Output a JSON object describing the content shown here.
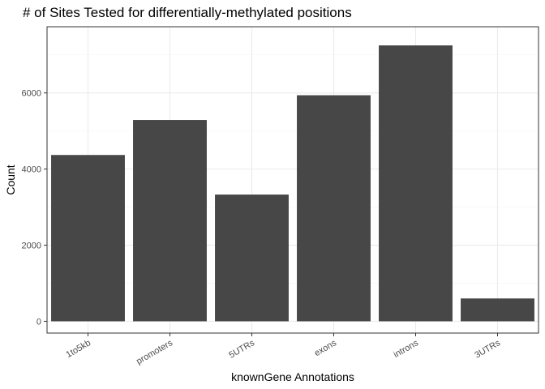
{
  "chart_data": {
    "type": "bar",
    "title": "# of Sites Tested for differentially-methylated positions",
    "xlabel": "knownGene Annotations",
    "ylabel": "Count",
    "categories": [
      "1to5kb",
      "promoters",
      "5UTRs",
      "exons",
      "introns",
      "3UTRs"
    ],
    "values": [
      4370,
      5290,
      3330,
      5940,
      7250,
      600
    ],
    "ylim": [
      -310,
      7740
    ],
    "yticks": [
      0,
      2000,
      4000,
      6000
    ],
    "ytick_labels": [
      "0",
      "2000",
      "4000",
      "6000"
    ],
    "grid": true,
    "bar_color": "#474747",
    "panel_border_color": "#333333",
    "grid_major_color": "#ebebeb",
    "grid_minor_color": "#f5f5f5"
  }
}
